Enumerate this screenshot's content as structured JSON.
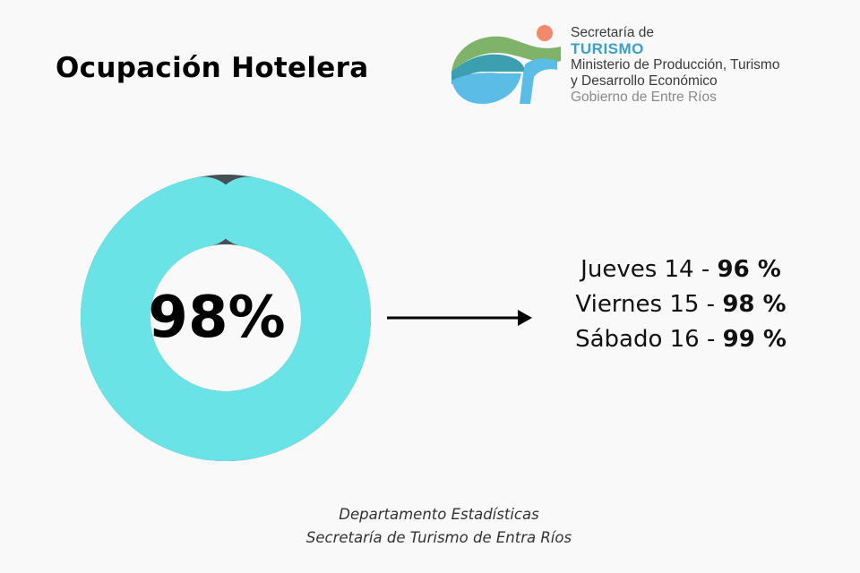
{
  "title": "Ocupación Hotelera",
  "logo": {
    "line1": "Secretaría de",
    "line2": "TURISMO",
    "line3": "Ministerio de Producción, Turismo",
    "line4": "y Desarrollo Económico",
    "line5": "Gobierno de Entre Ríos",
    "colors": {
      "green": "#7fb36a",
      "teal": "#3b9fb0",
      "blue": "#5bbde6",
      "coral": "#f08a6a"
    }
  },
  "chart_data": {
    "type": "pie",
    "variant": "donut",
    "center_label": "98%",
    "slices": [
      {
        "value": 98,
        "color": "#6ae3e6"
      },
      {
        "value": 2,
        "color": "#474e56"
      }
    ]
  },
  "days": [
    {
      "label": "Jueves 14 - ",
      "value": "96 %"
    },
    {
      "label": "Viernes 15 - ",
      "value": "98 %"
    },
    {
      "label": "Sábado 16 - ",
      "value": "99 %"
    }
  ],
  "footer": {
    "line1": "Departamento Estadísticas",
    "line2": "Secretaría de Turismo de Entra Ríos"
  }
}
